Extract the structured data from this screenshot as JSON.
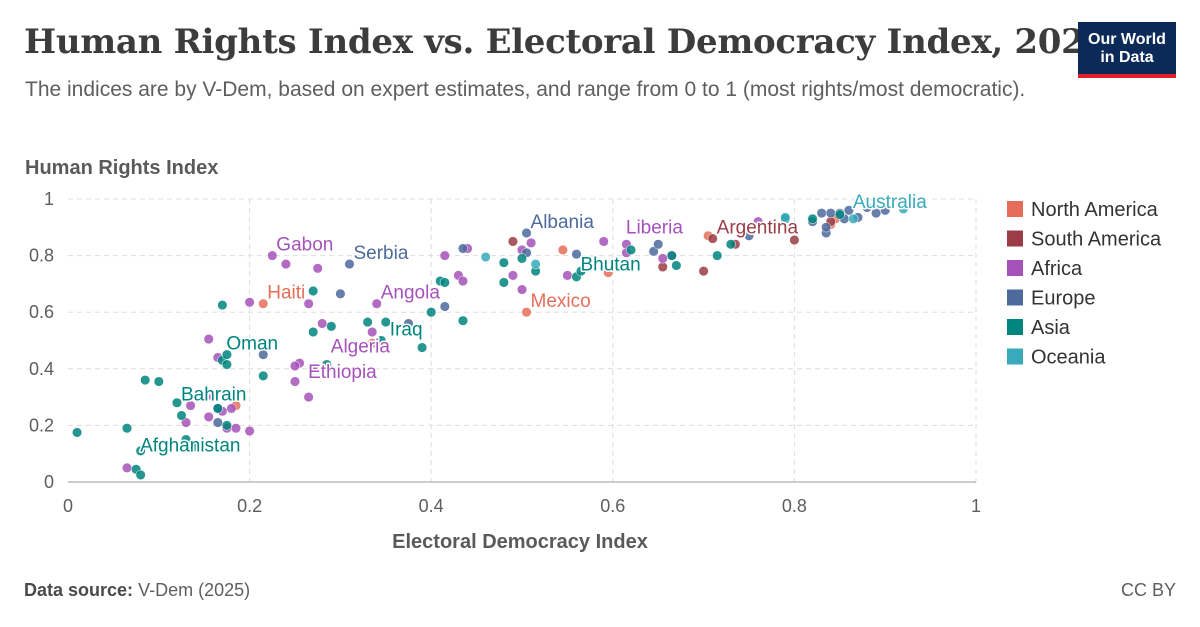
{
  "header": {
    "title": "Human Rights Index vs. Electoral Democracy Index, 2024",
    "subtitle": "The indices are by V-Dem, based on expert estimates, and range from 0 to 1 (most rights/most democratic).",
    "logo_line1": "Our World",
    "logo_line2": "in Data"
  },
  "footer": {
    "source_label": "Data source:",
    "source_value": "V-Dem (2025)",
    "license": "CC BY"
  },
  "colors": {
    "North America": "#e56e5a",
    "South America": "#9a3d45",
    "Africa": "#a652ba",
    "Europe": "#4c6a9c",
    "Asia": "#00847e",
    "Oceania": "#38aaba"
  },
  "chart_data": {
    "type": "scatter",
    "title": "Human Rights Index vs. Electoral Democracy Index, 2024",
    "xlabel": "Electoral Democracy Index",
    "ylabel": "Human Rights Index",
    "xlim": [
      0,
      1
    ],
    "ylim": [
      0,
      1
    ],
    "xticks": [
      "0",
      "0.2",
      "0.4",
      "0.6",
      "0.8",
      "1"
    ],
    "yticks": [
      "0",
      "0.2",
      "0.4",
      "0.6",
      "0.8",
      "1"
    ],
    "grid": true,
    "legend_position": "right",
    "legend": [
      "North America",
      "South America",
      "Africa",
      "Europe",
      "Asia",
      "Oceania"
    ],
    "labels": [
      {
        "text": "Albania",
        "series": "Europe",
        "x": 0.505,
        "y": 0.88
      },
      {
        "text": "Australia",
        "series": "Oceania",
        "x": 0.86,
        "y": 0.95
      },
      {
        "text": "Liberia",
        "series": "Africa",
        "x": 0.61,
        "y": 0.86
      },
      {
        "text": "Argentina",
        "series": "South America",
        "x": 0.71,
        "y": 0.86
      },
      {
        "text": "Gabon",
        "series": "Africa",
        "x": 0.225,
        "y": 0.8
      },
      {
        "text": "Serbia",
        "series": "Europe",
        "x": 0.31,
        "y": 0.77
      },
      {
        "text": "Bhutan",
        "series": "Asia",
        "x": 0.56,
        "y": 0.73
      },
      {
        "text": "Haiti",
        "series": "North America",
        "x": 0.215,
        "y": 0.63
      },
      {
        "text": "Angola",
        "series": "Africa",
        "x": 0.34,
        "y": 0.63
      },
      {
        "text": "Mexico",
        "series": "North America",
        "x": 0.505,
        "y": 0.6
      },
      {
        "text": "Iraq",
        "series": "Asia",
        "x": 0.35,
        "y": 0.5
      },
      {
        "text": "Oman",
        "series": "Asia",
        "x": 0.17,
        "y": 0.45
      },
      {
        "text": "Algeria",
        "series": "Africa",
        "x": 0.285,
        "y": 0.44
      },
      {
        "text": "Ethiopia",
        "series": "Africa",
        "x": 0.26,
        "y": 0.35
      },
      {
        "text": "Bahrain",
        "series": "Asia",
        "x": 0.12,
        "y": 0.27
      },
      {
        "text": "Afghanistan",
        "series": "Asia",
        "x": 0.075,
        "y": 0.09
      }
    ],
    "series": [
      {
        "name": "North America",
        "points": [
          [
            0.215,
            0.63
          ],
          [
            0.505,
            0.6
          ],
          [
            0.335,
            0.49
          ],
          [
            0.545,
            0.82
          ],
          [
            0.595,
            0.74
          ],
          [
            0.705,
            0.87
          ],
          [
            0.84,
            0.91
          ],
          [
            0.845,
            0.93
          ],
          [
            0.185,
            0.27
          ]
        ]
      },
      {
        "name": "South America",
        "points": [
          [
            0.71,
            0.86
          ],
          [
            0.49,
            0.85
          ],
          [
            0.655,
            0.76
          ],
          [
            0.7,
            0.745
          ],
          [
            0.8,
            0.855
          ],
          [
            0.84,
            0.92
          ],
          [
            0.735,
            0.84
          ]
        ]
      },
      {
        "name": "Africa",
        "points": [
          [
            0.225,
            0.8
          ],
          [
            0.24,
            0.77
          ],
          [
            0.275,
            0.755
          ],
          [
            0.34,
            0.63
          ],
          [
            0.265,
            0.63
          ],
          [
            0.2,
            0.635
          ],
          [
            0.155,
            0.505
          ],
          [
            0.165,
            0.44
          ],
          [
            0.18,
            0.26
          ],
          [
            0.155,
            0.23
          ],
          [
            0.17,
            0.25
          ],
          [
            0.175,
            0.19
          ],
          [
            0.2,
            0.18
          ],
          [
            0.13,
            0.21
          ],
          [
            0.135,
            0.27
          ],
          [
            0.065,
            0.05
          ],
          [
            0.255,
            0.42
          ],
          [
            0.25,
            0.41
          ],
          [
            0.27,
            0.405
          ],
          [
            0.25,
            0.355
          ],
          [
            0.265,
            0.3
          ],
          [
            0.28,
            0.56
          ],
          [
            0.335,
            0.53
          ],
          [
            0.415,
            0.8
          ],
          [
            0.44,
            0.825
          ],
          [
            0.43,
            0.73
          ],
          [
            0.435,
            0.71
          ],
          [
            0.49,
            0.73
          ],
          [
            0.5,
            0.68
          ],
          [
            0.5,
            0.82
          ],
          [
            0.51,
            0.845
          ],
          [
            0.55,
            0.73
          ],
          [
            0.59,
            0.85
          ],
          [
            0.615,
            0.81
          ],
          [
            0.615,
            0.84
          ],
          [
            0.655,
            0.79
          ],
          [
            0.665,
            0.8
          ],
          [
            0.76,
            0.92
          ],
          [
            0.16,
            0.3
          ],
          [
            0.185,
            0.19
          ]
        ]
      },
      {
        "name": "Europe",
        "points": [
          [
            0.31,
            0.77
          ],
          [
            0.3,
            0.665
          ],
          [
            0.435,
            0.825
          ],
          [
            0.505,
            0.88
          ],
          [
            0.505,
            0.81
          ],
          [
            0.56,
            0.805
          ],
          [
            0.645,
            0.815
          ],
          [
            0.65,
            0.84
          ],
          [
            0.75,
            0.87
          ],
          [
            0.82,
            0.92
          ],
          [
            0.83,
            0.95
          ],
          [
            0.835,
            0.88
          ],
          [
            0.835,
            0.9
          ],
          [
            0.84,
            0.95
          ],
          [
            0.85,
            0.95
          ],
          [
            0.855,
            0.93
          ],
          [
            0.86,
            0.96
          ],
          [
            0.87,
            0.935
          ],
          [
            0.88,
            0.97
          ],
          [
            0.89,
            0.95
          ],
          [
            0.9,
            0.96
          ],
          [
            0.415,
            0.62
          ],
          [
            0.215,
            0.45
          ],
          [
            0.165,
            0.26
          ],
          [
            0.165,
            0.21
          ],
          [
            0.375,
            0.56
          ]
        ]
      },
      {
        "name": "Asia",
        "points": [
          [
            0.01,
            0.175
          ],
          [
            0.065,
            0.19
          ],
          [
            0.075,
            0.045
          ],
          [
            0.08,
            0.025
          ],
          [
            0.085,
            0.36
          ],
          [
            0.1,
            0.355
          ],
          [
            0.12,
            0.28
          ],
          [
            0.125,
            0.235
          ],
          [
            0.13,
            0.15
          ],
          [
            0.14,
            0.125
          ],
          [
            0.145,
            0.12
          ],
          [
            0.165,
            0.26
          ],
          [
            0.17,
            0.625
          ],
          [
            0.17,
            0.43
          ],
          [
            0.175,
            0.45
          ],
          [
            0.175,
            0.415
          ],
          [
            0.175,
            0.2
          ],
          [
            0.215,
            0.375
          ],
          [
            0.27,
            0.675
          ],
          [
            0.27,
            0.53
          ],
          [
            0.285,
            0.415
          ],
          [
            0.29,
            0.55
          ],
          [
            0.33,
            0.565
          ],
          [
            0.345,
            0.5
          ],
          [
            0.35,
            0.565
          ],
          [
            0.39,
            0.475
          ],
          [
            0.4,
            0.6
          ],
          [
            0.41,
            0.71
          ],
          [
            0.415,
            0.705
          ],
          [
            0.435,
            0.57
          ],
          [
            0.48,
            0.775
          ],
          [
            0.48,
            0.705
          ],
          [
            0.5,
            0.79
          ],
          [
            0.515,
            0.745
          ],
          [
            0.56,
            0.725
          ],
          [
            0.565,
            0.745
          ],
          [
            0.62,
            0.82
          ],
          [
            0.665,
            0.8
          ],
          [
            0.67,
            0.765
          ],
          [
            0.715,
            0.8
          ],
          [
            0.73,
            0.84
          ],
          [
            0.79,
            0.93
          ],
          [
            0.82,
            0.93
          ],
          [
            0.85,
            0.945
          ],
          [
            0.08,
            0.11
          ]
        ]
      },
      {
        "name": "Oceania",
        "points": [
          [
            0.46,
            0.795
          ],
          [
            0.515,
            0.77
          ],
          [
            0.79,
            0.935
          ],
          [
            0.865,
            0.93
          ],
          [
            0.92,
            0.965
          ]
        ]
      }
    ]
  }
}
